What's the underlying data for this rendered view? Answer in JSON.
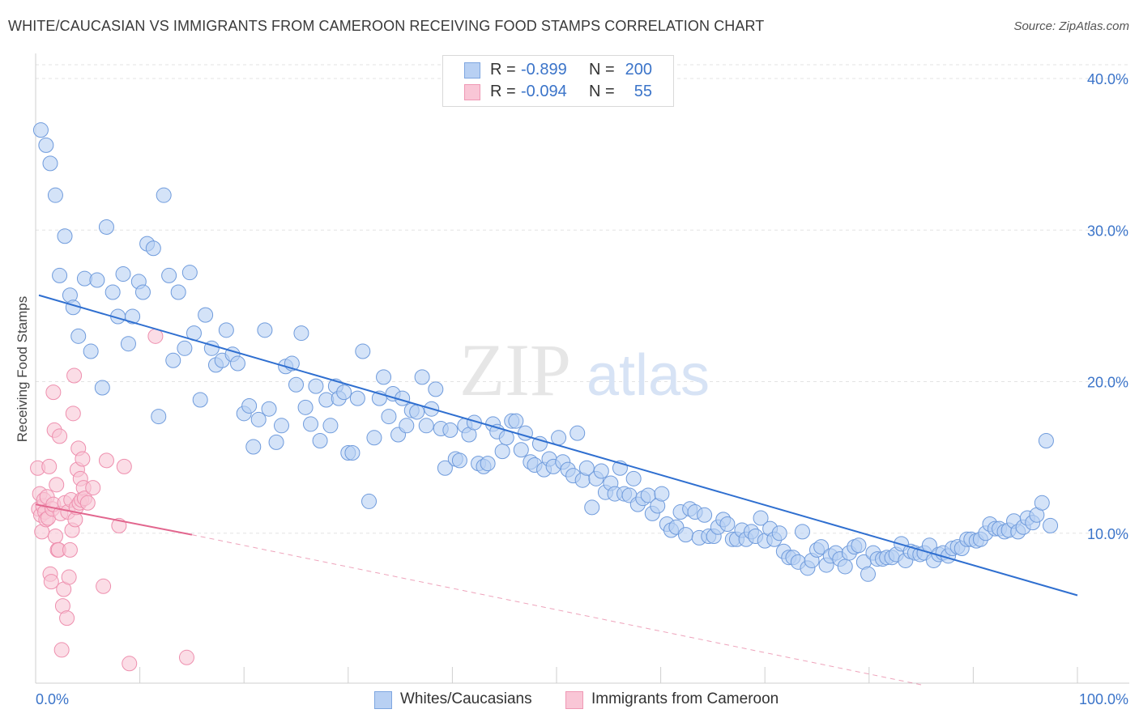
{
  "header": {
    "title": "WHITE/CAUCASIAN VS IMMIGRANTS FROM CAMEROON RECEIVING FOOD STAMPS CORRELATION CHART",
    "source": "Source: ZipAtlas.com"
  },
  "legend": {
    "blue": {
      "r_label": "R =",
      "r_value": "-0.899",
      "n_label": "N =",
      "n_value": "200"
    },
    "pink": {
      "r_label": "R =",
      "r_value": "-0.094",
      "n_label": "N =",
      "n_value": "55"
    }
  },
  "watermark": {
    "zip": "ZIP",
    "atlas": "atlas"
  },
  "colors": {
    "blue_fill": "#b8d0f3",
    "blue_stroke": "#6f9bdc",
    "blue_line": "#2f6fd0",
    "pink_fill": "#f9c6d6",
    "pink_stroke": "#ee8fae",
    "pink_line": "#e2668e",
    "tick_text": "#3b74c9",
    "grid": "#e3e3e3"
  },
  "chart_data": {
    "type": "scatter",
    "title": "WHITE/CAUCASIAN VS IMMIGRANTS FROM CAMEROON RECEIVING FOOD STAMPS CORRELATION CHART",
    "xlabel": "",
    "ylabel": "Receiving Food Stamps",
    "xlim": [
      0,
      100
    ],
    "ylim": [
      0,
      40
    ],
    "x_tick_labels": [
      "0.0%",
      "100.0%"
    ],
    "y_ticks": [
      10,
      20,
      30,
      40
    ],
    "y_tick_labels": [
      "10.0%",
      "20.0%",
      "30.0%",
      "40.0%"
    ],
    "grid": "horizontal dashed",
    "legend_position": "bottom-center",
    "series": [
      {
        "name": "Whites/Caucasians",
        "color": "#b8d0f3",
        "trend": {
          "x": [
            0,
            100
          ],
          "y": [
            25.7,
            5.9
          ],
          "style": "solid"
        },
        "points": [
          [
            0.5,
            36.6
          ],
          [
            1.0,
            35.6
          ],
          [
            1.4,
            34.4
          ],
          [
            1.9,
            32.3
          ],
          [
            2.3,
            27.0
          ],
          [
            2.8,
            29.6
          ],
          [
            3.3,
            25.7
          ],
          [
            3.6,
            24.9
          ],
          [
            4.1,
            23.0
          ],
          [
            4.7,
            26.8
          ],
          [
            5.3,
            22.0
          ],
          [
            5.9,
            26.7
          ],
          [
            6.4,
            19.6
          ],
          [
            6.8,
            30.2
          ],
          [
            7.4,
            25.9
          ],
          [
            7.9,
            24.3
          ],
          [
            8.4,
            27.1
          ],
          [
            8.9,
            22.5
          ],
          [
            9.3,
            24.3
          ],
          [
            9.9,
            26.6
          ],
          [
            10.3,
            25.9
          ],
          [
            10.7,
            29.1
          ],
          [
            11.3,
            28.8
          ],
          [
            11.8,
            17.7
          ],
          [
            12.3,
            32.3
          ],
          [
            12.8,
            27.0
          ],
          [
            13.2,
            21.4
          ],
          [
            13.7,
            25.9
          ],
          [
            14.3,
            22.2
          ],
          [
            14.8,
            27.2
          ],
          [
            15.2,
            23.2
          ],
          [
            15.8,
            18.8
          ],
          [
            16.3,
            24.4
          ],
          [
            16.9,
            22.2
          ],
          [
            17.3,
            21.1
          ],
          [
            17.9,
            21.4
          ],
          [
            18.3,
            23.4
          ],
          [
            18.9,
            21.8
          ],
          [
            19.4,
            21.2
          ],
          [
            20.0,
            17.9
          ],
          [
            20.5,
            18.4
          ],
          [
            20.9,
            15.7
          ],
          [
            21.4,
            17.5
          ],
          [
            22.0,
            23.4
          ],
          [
            22.4,
            18.2
          ],
          [
            23.1,
            16.0
          ],
          [
            23.6,
            17.1
          ],
          [
            24.0,
            21.0
          ],
          [
            24.6,
            21.2
          ],
          [
            25.0,
            19.8
          ],
          [
            25.5,
            23.2
          ],
          [
            25.9,
            18.3
          ],
          [
            26.4,
            17.2
          ],
          [
            26.9,
            19.7
          ],
          [
            27.3,
            16.1
          ],
          [
            27.9,
            18.8
          ],
          [
            28.3,
            17.1
          ],
          [
            28.8,
            19.7
          ],
          [
            29.1,
            18.9
          ],
          [
            29.6,
            19.3
          ],
          [
            30.0,
            15.3
          ],
          [
            30.4,
            15.3
          ],
          [
            30.9,
            18.9
          ],
          [
            31.4,
            22.0
          ],
          [
            32.0,
            12.1
          ],
          [
            32.5,
            16.3
          ],
          [
            33.0,
            18.9
          ],
          [
            33.4,
            20.3
          ],
          [
            33.9,
            17.7
          ],
          [
            34.3,
            19.2
          ],
          [
            34.8,
            16.5
          ],
          [
            35.2,
            18.9
          ],
          [
            35.6,
            17.1
          ],
          [
            36.1,
            18.1
          ],
          [
            36.6,
            18.0
          ],
          [
            37.1,
            20.3
          ],
          [
            37.5,
            17.1
          ],
          [
            38.0,
            18.2
          ],
          [
            38.4,
            19.5
          ],
          [
            38.9,
            16.9
          ],
          [
            39.3,
            14.3
          ],
          [
            39.8,
            16.8
          ],
          [
            40.3,
            14.9
          ],
          [
            40.7,
            14.8
          ],
          [
            41.2,
            17.1
          ],
          [
            41.6,
            16.5
          ],
          [
            42.1,
            17.3
          ],
          [
            42.5,
            14.6
          ],
          [
            43.0,
            14.4
          ],
          [
            43.4,
            14.6
          ],
          [
            43.9,
            17.2
          ],
          [
            44.3,
            16.7
          ],
          [
            44.8,
            15.4
          ],
          [
            45.2,
            16.3
          ],
          [
            45.7,
            17.4
          ],
          [
            46.1,
            17.4
          ],
          [
            46.6,
            15.5
          ],
          [
            47.0,
            16.6
          ],
          [
            47.5,
            14.7
          ],
          [
            47.9,
            14.5
          ],
          [
            48.4,
            15.9
          ],
          [
            48.8,
            14.2
          ],
          [
            49.3,
            14.9
          ],
          [
            49.7,
            14.4
          ],
          [
            50.2,
            16.3
          ],
          [
            50.6,
            14.7
          ],
          [
            51.1,
            14.2
          ],
          [
            51.6,
            13.8
          ],
          [
            52.0,
            16.6
          ],
          [
            52.5,
            13.5
          ],
          [
            52.9,
            14.3
          ],
          [
            53.4,
            11.7
          ],
          [
            53.8,
            13.6
          ],
          [
            54.3,
            14.1
          ],
          [
            54.7,
            12.7
          ],
          [
            55.2,
            13.3
          ],
          [
            55.6,
            12.6
          ],
          [
            56.1,
            14.3
          ],
          [
            56.5,
            12.6
          ],
          [
            57.0,
            12.5
          ],
          [
            57.4,
            13.6
          ],
          [
            57.8,
            11.9
          ],
          [
            58.3,
            12.3
          ],
          [
            58.8,
            12.5
          ],
          [
            59.2,
            11.3
          ],
          [
            59.7,
            11.8
          ],
          [
            60.1,
            12.6
          ],
          [
            60.6,
            10.6
          ],
          [
            61.0,
            10.2
          ],
          [
            61.5,
            10.4
          ],
          [
            61.9,
            11.4
          ],
          [
            62.4,
            9.9
          ],
          [
            62.8,
            11.6
          ],
          [
            63.3,
            11.4
          ],
          [
            63.7,
            9.7
          ],
          [
            64.2,
            11.2
          ],
          [
            64.6,
            9.8
          ],
          [
            65.1,
            9.8
          ],
          [
            65.5,
            10.4
          ],
          [
            66.0,
            10.9
          ],
          [
            66.4,
            10.6
          ],
          [
            66.9,
            9.6
          ],
          [
            67.3,
            9.6
          ],
          [
            67.8,
            10.2
          ],
          [
            68.2,
            9.6
          ],
          [
            68.7,
            10.1
          ],
          [
            69.1,
            9.8
          ],
          [
            69.6,
            11.0
          ],
          [
            70.0,
            9.5
          ],
          [
            70.5,
            10.3
          ],
          [
            70.9,
            9.6
          ],
          [
            71.4,
            10.0
          ],
          [
            71.8,
            8.8
          ],
          [
            72.3,
            8.4
          ],
          [
            72.7,
            8.4
          ],
          [
            73.2,
            8.1
          ],
          [
            73.6,
            10.1
          ],
          [
            74.1,
            7.7
          ],
          [
            74.5,
            8.2
          ],
          [
            75.0,
            8.9
          ],
          [
            75.4,
            9.1
          ],
          [
            75.9,
            7.9
          ],
          [
            76.3,
            8.5
          ],
          [
            76.8,
            8.7
          ],
          [
            77.2,
            8.3
          ],
          [
            77.7,
            7.8
          ],
          [
            78.1,
            8.7
          ],
          [
            78.6,
            9.1
          ],
          [
            79.0,
            9.2
          ],
          [
            79.5,
            8.1
          ],
          [
            79.9,
            7.3
          ],
          [
            80.4,
            8.7
          ],
          [
            80.8,
            8.3
          ],
          [
            81.3,
            8.3
          ],
          [
            81.7,
            8.4
          ],
          [
            82.2,
            8.4
          ],
          [
            82.6,
            8.6
          ],
          [
            83.1,
            9.3
          ],
          [
            83.5,
            8.2
          ],
          [
            84.0,
            8.8
          ],
          [
            84.4,
            8.7
          ],
          [
            84.9,
            8.6
          ],
          [
            85.3,
            8.7
          ],
          [
            85.8,
            9.2
          ],
          [
            86.2,
            8.2
          ],
          [
            86.7,
            8.6
          ],
          [
            87.1,
            8.7
          ],
          [
            87.6,
            8.5
          ],
          [
            88.0,
            9.0
          ],
          [
            88.5,
            9.1
          ],
          [
            88.9,
            9.0
          ],
          [
            89.4,
            9.6
          ],
          [
            89.8,
            9.6
          ],
          [
            90.3,
            9.5
          ],
          [
            90.7,
            9.6
          ],
          [
            91.2,
            10.0
          ],
          [
            91.6,
            10.6
          ],
          [
            92.1,
            10.3
          ],
          [
            92.5,
            10.3
          ],
          [
            93.0,
            10.1
          ],
          [
            93.4,
            10.2
          ],
          [
            93.9,
            10.8
          ],
          [
            94.3,
            10.1
          ],
          [
            94.8,
            10.4
          ],
          [
            95.2,
            11.0
          ],
          [
            95.7,
            10.7
          ],
          [
            96.1,
            11.2
          ],
          [
            96.6,
            12.0
          ],
          [
            97.0,
            16.1
          ],
          [
            97.4,
            10.5
          ]
        ]
      },
      {
        "name": "Immigrants from Cameroon",
        "color": "#f9c6d6",
        "trend": {
          "x": [
            0,
            15
          ],
          "y": [
            11.9,
            9.9
          ],
          "style": "solid",
          "extension": {
            "x": [
              15,
              85
            ],
            "y": [
              9.9,
              0.0
            ],
            "style": "dashed"
          }
        },
        "points": [
          [
            0.2,
            14.3
          ],
          [
            0.3,
            11.6
          ],
          [
            0.4,
            12.6
          ],
          [
            0.5,
            11.2
          ],
          [
            0.6,
            10.1
          ],
          [
            0.7,
            11.8
          ],
          [
            0.8,
            12.2
          ],
          [
            0.9,
            11.4
          ],
          [
            1.0,
            10.9
          ],
          [
            1.1,
            12.4
          ],
          [
            1.2,
            11.0
          ],
          [
            1.3,
            14.4
          ],
          [
            1.4,
            7.3
          ],
          [
            1.5,
            6.8
          ],
          [
            1.6,
            11.6
          ],
          [
            1.7,
            11.9
          ],
          [
            1.8,
            16.8
          ],
          [
            1.9,
            9.8
          ],
          [
            2.0,
            13.2
          ],
          [
            2.1,
            8.9
          ],
          [
            2.2,
            8.9
          ],
          [
            2.3,
            16.4
          ],
          [
            2.4,
            11.3
          ],
          [
            2.5,
            2.3
          ],
          [
            2.6,
            5.2
          ],
          [
            2.7,
            6.3
          ],
          [
            2.8,
            12.0
          ],
          [
            3.0,
            4.4
          ],
          [
            3.1,
            11.4
          ],
          [
            3.2,
            7.1
          ],
          [
            3.3,
            8.9
          ],
          [
            3.4,
            12.2
          ],
          [
            3.5,
            10.2
          ],
          [
            3.6,
            17.9
          ],
          [
            3.7,
            20.4
          ],
          [
            3.8,
            10.9
          ],
          [
            3.9,
            11.7
          ],
          [
            4.0,
            14.2
          ],
          [
            4.1,
            15.6
          ],
          [
            4.2,
            12.0
          ],
          [
            4.3,
            13.6
          ],
          [
            4.4,
            12.2
          ],
          [
            4.5,
            14.9
          ],
          [
            4.6,
            13.0
          ],
          [
            4.7,
            12.3
          ],
          [
            5.0,
            12.0
          ],
          [
            5.5,
            13.0
          ],
          [
            6.5,
            6.5
          ],
          [
            6.8,
            14.8
          ],
          [
            8.0,
            10.5
          ],
          [
            8.5,
            14.4
          ],
          [
            9.0,
            1.4
          ],
          [
            11.5,
            23.0
          ],
          [
            14.5,
            1.8
          ],
          [
            1.7,
            19.3
          ]
        ]
      }
    ]
  }
}
